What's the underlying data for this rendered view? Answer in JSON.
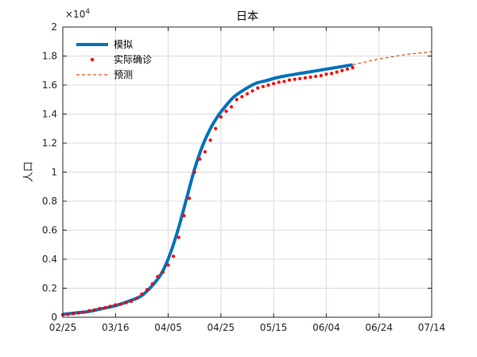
{
  "chart_data": {
    "type": "line",
    "title": "日本",
    "xlabel": "",
    "ylabel": "人口",
    "y_exponent_label": "×10^4",
    "xlim": [
      "02/25",
      "07/14"
    ],
    "ylim": [
      0,
      2
    ],
    "x_ticks": [
      "02/25",
      "03/16",
      "04/05",
      "04/25",
      "05/15",
      "06/04",
      "06/24",
      "07/14"
    ],
    "y_ticks": [
      "0",
      "0.2",
      "0.4",
      "0.6",
      "0.8",
      "1",
      "1.2",
      "1.4",
      "1.6",
      "1.8",
      "2"
    ],
    "grid": true,
    "legend_position": "top-left",
    "colors": {
      "simulated": "#0072bd",
      "actual": "#ff0000",
      "forecast": "#d95319"
    },
    "series": [
      {
        "name": "模拟",
        "style": "solid-thick",
        "x": [
          "02/25",
          "03/01",
          "03/06",
          "03/11",
          "03/16",
          "03/21",
          "03/26",
          "03/31",
          "04/03",
          "04/06",
          "04/09",
          "04/12",
          "04/15",
          "04/18",
          "04/21",
          "04/24",
          "04/27",
          "04/30",
          "05/04",
          "05/08",
          "05/12",
          "05/16",
          "05/20",
          "05/25",
          "05/30",
          "06/04",
          "06/09",
          "06/14"
        ],
        "y": [
          0.02,
          0.03,
          0.04,
          0.06,
          0.08,
          0.11,
          0.15,
          0.24,
          0.32,
          0.45,
          0.62,
          0.82,
          1.02,
          1.18,
          1.3,
          1.39,
          1.46,
          1.52,
          1.57,
          1.61,
          1.63,
          1.65,
          1.665,
          1.68,
          1.695,
          1.71,
          1.725,
          1.74
        ]
      },
      {
        "name": "实际确诊",
        "style": "dots",
        "x": [
          "02/25",
          "02/27",
          "02/29",
          "03/02",
          "03/04",
          "03/06",
          "03/08",
          "03/10",
          "03/12",
          "03/14",
          "03/16",
          "03/18",
          "03/20",
          "03/22",
          "03/24",
          "03/26",
          "03/28",
          "03/30",
          "04/01",
          "04/03",
          "04/05",
          "04/07",
          "04/09",
          "04/11",
          "04/13",
          "04/15",
          "04/17",
          "04/19",
          "04/21",
          "04/23",
          "04/25",
          "04/27",
          "04/29",
          "05/01",
          "05/03",
          "05/05",
          "05/07",
          "05/09",
          "05/11",
          "05/13",
          "05/15",
          "05/17",
          "05/19",
          "05/21",
          "05/23",
          "05/25",
          "05/27",
          "05/29",
          "05/31",
          "06/02",
          "06/04",
          "06/06",
          "06/08",
          "06/10",
          "06/12",
          "06/14"
        ],
        "y": [
          0.017,
          0.02,
          0.025,
          0.03,
          0.035,
          0.045,
          0.05,
          0.06,
          0.065,
          0.075,
          0.085,
          0.09,
          0.1,
          0.11,
          0.13,
          0.16,
          0.19,
          0.23,
          0.28,
          0.31,
          0.36,
          0.42,
          0.55,
          0.7,
          0.82,
          1.0,
          1.09,
          1.14,
          1.22,
          1.3,
          1.38,
          1.42,
          1.45,
          1.5,
          1.52,
          1.54,
          1.56,
          1.58,
          1.59,
          1.6,
          1.61,
          1.62,
          1.625,
          1.635,
          1.64,
          1.645,
          1.65,
          1.655,
          1.66,
          1.665,
          1.675,
          1.68,
          1.69,
          1.7,
          1.71,
          1.72
        ]
      },
      {
        "name": "预测",
        "style": "dashed",
        "x": [
          "06/14",
          "06/19",
          "06/24",
          "06/29",
          "07/04",
          "07/09",
          "07/14"
        ],
        "y": [
          1.74,
          1.76,
          1.78,
          1.795,
          1.81,
          1.82,
          1.83
        ]
      }
    ]
  }
}
